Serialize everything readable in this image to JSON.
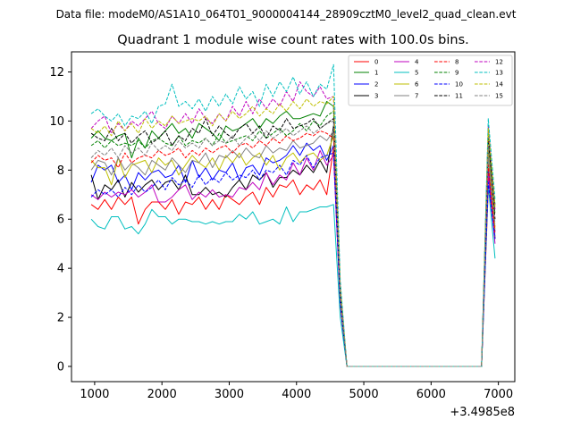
{
  "suptitle": "Data file: modeM0/AS1A10_064T01_9000004144_28909cztM0_level2_quad_clean.evt",
  "chart_data": {
    "type": "line",
    "title": "Quadrant 1 module wise count rates with 100.0s bins.",
    "xlabel": "",
    "ylabel": "",
    "x_offset_label": "+3.4985e8",
    "xlim": [
      656,
      7244
    ],
    "ylim": [
      -0.62,
      12.82
    ],
    "xticks": [
      1000,
      2000,
      3000,
      4000,
      5000,
      6000,
      7000
    ],
    "xtick_labels": [
      "1000",
      "2000",
      "3000",
      "4000",
      "5000",
      "6000",
      "7000"
    ],
    "yticks": [
      0,
      2,
      4,
      6,
      8,
      10,
      12
    ],
    "ytick_labels": [
      "0",
      "2",
      "4",
      "6",
      "8",
      "10",
      "12"
    ],
    "grid": false,
    "legend_position": "top-right",
    "x": [
      950,
      1050,
      1150,
      1250,
      1350,
      1450,
      1550,
      1650,
      1750,
      1850,
      1950,
      2050,
      2150,
      2250,
      2350,
      2450,
      2550,
      2650,
      2750,
      2850,
      2950,
      3050,
      3150,
      3250,
      3350,
      3450,
      3550,
      3650,
      3750,
      3850,
      3950,
      4050,
      4150,
      4250,
      4350,
      4450,
      4550,
      4650,
      4750,
      4850,
      4950,
      5050,
      5150,
      5250,
      5350,
      5450,
      5550,
      5650,
      5750,
      5850,
      5950,
      6050,
      6150,
      6250,
      6350,
      6450,
      6550,
      6650,
      6750,
      6850,
      6950
    ],
    "series": [
      {
        "name": "0",
        "color": "#ff0000",
        "dash": "solid",
        "values": [
          6.6,
          6.4,
          6.8,
          6.4,
          6.9,
          6.6,
          6.9,
          5.8,
          6.4,
          6.7,
          6.7,
          6.4,
          6.8,
          6.2,
          6.7,
          6.6,
          6.9,
          6.4,
          6.8,
          6.4,
          7.0,
          6.8,
          6.6,
          6.9,
          7.1,
          6.6,
          7.3,
          6.9,
          7.4,
          7.3,
          7.6,
          7.0,
          7.4,
          7.2,
          7.6,
          7.0,
          8.9,
          2.5,
          0,
          0,
          0,
          0,
          0,
          0,
          0,
          0,
          0,
          0,
          0,
          0,
          0,
          0,
          0,
          0,
          0,
          0,
          0,
          0,
          0,
          7.2,
          5.7
        ]
      },
      {
        "name": "1",
        "color": "#008000",
        "dash": "solid",
        "values": [
          9.3,
          9.6,
          9.3,
          9.2,
          9.4,
          9.5,
          8.5,
          9.3,
          8.9,
          9.6,
          9.3,
          9.6,
          9.9,
          9.5,
          9.7,
          9.3,
          9.9,
          9.7,
          9.5,
          9.2,
          9.8,
          9.6,
          9.7,
          9.9,
          10.1,
          9.7,
          10.1,
          9.9,
          10.2,
          10.4,
          10.1,
          10.1,
          10.2,
          10.3,
          10.2,
          10.8,
          10.6,
          3.0,
          0,
          0,
          0,
          0,
          0,
          0,
          0,
          0,
          0,
          0,
          0,
          0,
          0,
          0,
          0,
          0,
          0,
          0,
          0,
          0,
          0,
          9.0,
          6.6
        ]
      },
      {
        "name": "2",
        "color": "#0000ff",
        "dash": "solid",
        "values": [
          7.5,
          8.2,
          8.0,
          8.2,
          7.5,
          7.8,
          7.2,
          7.9,
          7.6,
          7.9,
          8.0,
          7.7,
          7.8,
          8.2,
          7.5,
          8.4,
          7.7,
          8.1,
          7.6,
          8.0,
          7.9,
          8.3,
          7.6,
          8.1,
          8.2,
          7.8,
          8.5,
          8.3,
          8.4,
          8.6,
          9.0,
          8.6,
          9.1,
          8.8,
          9.0,
          8.4,
          9.0,
          2.6,
          0,
          0,
          0,
          0,
          0,
          0,
          0,
          0,
          0,
          0,
          0,
          0,
          0,
          0,
          0,
          0,
          0,
          0,
          0,
          0,
          0,
          8.0,
          5.5
        ]
      },
      {
        "name": "3",
        "color": "#000000",
        "dash": "solid",
        "values": [
          7.8,
          6.8,
          7.4,
          7.2,
          7.6,
          6.9,
          7.5,
          7.1,
          7.4,
          7.6,
          7.2,
          7.5,
          7.6,
          7.2,
          7.8,
          7.0,
          7.0,
          7.3,
          7.0,
          7.1,
          6.9,
          7.3,
          7.6,
          7.2,
          7.8,
          7.6,
          7.9,
          7.3,
          7.7,
          7.7,
          8.0,
          7.8,
          8.2,
          7.9,
          8.4,
          7.9,
          9.8,
          2.7,
          0,
          0,
          0,
          0,
          0,
          0,
          0,
          0,
          0,
          0,
          0,
          0,
          0,
          0,
          0,
          0,
          0,
          0,
          0,
          0,
          0,
          8.6,
          5.2
        ]
      },
      {
        "name": "4",
        "color": "#bf00bf",
        "dash": "solid",
        "values": [
          7.0,
          6.8,
          7.1,
          6.9,
          7.1,
          7.0,
          7.2,
          6.9,
          7.1,
          7.4,
          6.7,
          6.7,
          6.9,
          7.2,
          7.4,
          6.8,
          7.1,
          6.9,
          7.2,
          6.9,
          7.0,
          6.9,
          7.3,
          7.2,
          7.5,
          7.2,
          7.9,
          7.4,
          7.8,
          7.6,
          8.3,
          7.8,
          8.5,
          8.0,
          8.8,
          8.2,
          8.6,
          2.6,
          0,
          0,
          0,
          0,
          0,
          0,
          0,
          0,
          0,
          0,
          0,
          0,
          0,
          0,
          0,
          0,
          0,
          0,
          0,
          0,
          0,
          7.8,
          5.0
        ]
      },
      {
        "name": "5",
        "color": "#00bfbf",
        "dash": "solid",
        "values": [
          6.0,
          5.7,
          5.6,
          6.1,
          6.1,
          5.6,
          5.7,
          5.4,
          5.8,
          6.4,
          6.1,
          6.1,
          5.8,
          6.0,
          6.0,
          5.9,
          5.9,
          5.8,
          5.9,
          5.8,
          5.9,
          5.9,
          6.2,
          6.0,
          6.3,
          5.8,
          5.9,
          6.0,
          5.8,
          6.5,
          5.9,
          6.3,
          6.3,
          6.4,
          6.5,
          6.5,
          6.6,
          2.0,
          0,
          0,
          0,
          0,
          0,
          0,
          0,
          0,
          0,
          0,
          0,
          0,
          0,
          0,
          0,
          0,
          0,
          0,
          0,
          0,
          0,
          7.4,
          4.4
        ]
      },
      {
        "name": "6",
        "color": "#bfbf00",
        "dash": "solid",
        "values": [
          8.4,
          8.1,
          8.1,
          7.4,
          8.5,
          7.7,
          8.2,
          8.3,
          8.4,
          7.9,
          8.5,
          8.2,
          8.4,
          7.8,
          8.2,
          8.6,
          8.3,
          8.1,
          8.5,
          8.0,
          8.6,
          8.3,
          8.7,
          8.2,
          8.5,
          8.7,
          8.2,
          8.6,
          8.0,
          8.5,
          8.7,
          8.3,
          8.6,
          8.7,
          8.4,
          8.6,
          9.4,
          2.7,
          0,
          0,
          0,
          0,
          0,
          0,
          0,
          0,
          0,
          0,
          0,
          0,
          0,
          0,
          0,
          0,
          0,
          0,
          0,
          0,
          0,
          8.8,
          5.6
        ]
      },
      {
        "name": "7",
        "color": "#808080",
        "dash": "solid",
        "values": [
          8.0,
          8.4,
          8.3,
          7.8,
          8.5,
          8.0,
          8.3,
          8.1,
          7.8,
          8.4,
          8.2,
          8.0,
          8.5,
          8.2,
          7.9,
          8.4,
          8.3,
          8.7,
          8.1,
          8.6,
          8.5,
          8.8,
          8.5,
          8.9,
          8.6,
          8.5,
          9.0,
          8.7,
          8.9,
          8.8,
          9.2,
          8.9,
          9.0,
          9.1,
          9.4,
          9.2,
          9.6,
          2.8,
          0,
          0,
          0,
          0,
          0,
          0,
          0,
          0,
          0,
          0,
          0,
          0,
          0,
          0,
          0,
          0,
          0,
          0,
          0,
          0,
          0,
          8.5,
          5.3
        ]
      },
      {
        "name": "8",
        "color": "#ff0000",
        "dash": "dashed",
        "values": [
          8.3,
          8.6,
          8.4,
          8.5,
          8.1,
          8.7,
          8.3,
          8.5,
          8.6,
          8.5,
          8.8,
          8.6,
          8.7,
          8.9,
          8.5,
          8.8,
          8.6,
          8.9,
          8.7,
          8.9,
          9.0,
          8.7,
          9.0,
          9.1,
          8.9,
          9.2,
          9.0,
          9.3,
          9.1,
          9.4,
          9.2,
          9.3,
          9.5,
          9.4,
          9.6,
          9.5,
          9.3,
          2.8,
          0,
          0,
          0,
          0,
          0,
          0,
          0,
          0,
          0,
          0,
          0,
          0,
          0,
          0,
          0,
          0,
          0,
          0,
          0,
          0,
          0,
          8.2,
          5.4
        ]
      },
      {
        "name": "9",
        "color": "#008000",
        "dash": "dashed",
        "values": [
          9.0,
          9.2,
          8.9,
          9.2,
          9.0,
          9.1,
          9.0,
          9.2,
          8.9,
          9.2,
          9.3,
          9.1,
          9.0,
          9.4,
          9.0,
          9.2,
          9.1,
          9.3,
          9.0,
          9.5,
          9.1,
          9.2,
          9.3,
          9.4,
          9.2,
          9.6,
          9.3,
          9.5,
          9.7,
          9.4,
          9.6,
          9.9,
          9.6,
          10.0,
          9.8,
          10.2,
          10.4,
          3.0,
          0,
          0,
          0,
          0,
          0,
          0,
          0,
          0,
          0,
          0,
          0,
          0,
          0,
          0,
          0,
          0,
          0,
          0,
          0,
          0,
          0,
          9.6,
          6.2
        ]
      },
      {
        "name": "10",
        "color": "#0000ff",
        "dash": "dashed",
        "values": [
          6.9,
          7.2,
          7.0,
          7.2,
          6.9,
          7.3,
          7.0,
          7.4,
          7.1,
          7.3,
          7.6,
          7.2,
          7.7,
          7.4,
          7.6,
          7.3,
          7.8,
          7.4,
          7.7,
          7.5,
          7.9,
          7.6,
          7.8,
          7.7,
          8.0,
          7.6,
          8.0,
          7.9,
          8.2,
          7.8,
          8.4,
          8.2,
          8.6,
          8.1,
          8.5,
          8.6,
          8.7,
          2.6,
          0,
          0,
          0,
          0,
          0,
          0,
          0,
          0,
          0,
          0,
          0,
          0,
          0,
          0,
          0,
          0,
          0,
          0,
          0,
          0,
          0,
          7.5,
          5.2
        ]
      },
      {
        "name": "11",
        "color": "#000000",
        "dash": "dashed",
        "values": [
          9.5,
          9.3,
          9.2,
          9.7,
          9.2,
          9.5,
          9.1,
          9.4,
          9.6,
          9.1,
          9.3,
          9.6,
          9.0,
          9.4,
          9.2,
          9.7,
          9.5,
          10.1,
          9.4,
          9.8,
          9.5,
          9.3,
          9.7,
          9.9,
          9.5,
          9.8,
          9.3,
          9.8,
          9.6,
          10.1,
          9.7,
          9.8,
          9.9,
          10.1,
          9.7,
          9.9,
          10.1,
          3.0,
          0,
          0,
          0,
          0,
          0,
          0,
          0,
          0,
          0,
          0,
          0,
          0,
          0,
          0,
          0,
          0,
          0,
          0,
          0,
          0,
          0,
          9.3,
          6.0
        ]
      },
      {
        "name": "12",
        "color": "#bf00bf",
        "dash": "dashed",
        "values": [
          9.7,
          10.0,
          10.2,
          9.5,
          9.9,
          9.6,
          10.0,
          9.8,
          10.1,
          10.4,
          9.9,
          9.7,
          10.2,
          9.9,
          10.3,
          9.9,
          10.5,
          10.1,
          9.9,
          10.3,
          10.0,
          10.6,
          10.2,
          10.8,
          10.3,
          10.9,
          10.5,
          10.9,
          10.6,
          11.2,
          10.8,
          11.6,
          11.2,
          11.0,
          11.4,
          10.9,
          11.0,
          3.3,
          0,
          0,
          0,
          0,
          0,
          0,
          0,
          0,
          0,
          0,
          0,
          0,
          0,
          0,
          0,
          0,
          0,
          0,
          0,
          0,
          0,
          9.8,
          6.4
        ]
      },
      {
        "name": "13",
        "color": "#00bfbf",
        "dash": "dashed",
        "values": [
          10.3,
          10.5,
          10.2,
          10.0,
          10.3,
          9.8,
          10.2,
          10.1,
          10.4,
          9.9,
          10.6,
          10.7,
          11.5,
          10.6,
          10.8,
          10.5,
          10.9,
          10.4,
          11.0,
          10.6,
          11.1,
          10.7,
          11.4,
          10.9,
          11.2,
          10.6,
          11.5,
          11.0,
          11.6,
          11.2,
          11.8,
          11.1,
          11.6,
          11.0,
          11.5,
          11.3,
          12.3,
          3.5,
          0,
          0,
          0,
          0,
          0,
          0,
          0,
          0,
          0,
          0,
          0,
          0,
          0,
          0,
          0,
          0,
          0,
          0,
          0,
          0,
          0,
          10.1,
          6.8
        ]
      },
      {
        "name": "14",
        "color": "#bfbf00",
        "dash": "dashed",
        "values": [
          9.7,
          9.5,
          9.8,
          9.4,
          10.0,
          9.6,
          9.9,
          9.5,
          10.1,
          9.7,
          10.0,
          9.8,
          10.2,
          9.9,
          10.0,
          10.1,
          10.0,
          10.2,
          9.8,
          10.3,
          10.0,
          10.4,
          10.1,
          10.3,
          10.6,
          10.2,
          10.5,
          10.3,
          10.7,
          10.4,
          10.8,
          10.5,
          10.9,
          10.6,
          10.8,
          10.7,
          11.0,
          3.2,
          0,
          0,
          0,
          0,
          0,
          0,
          0,
          0,
          0,
          0,
          0,
          0,
          0,
          0,
          0,
          0,
          0,
          0,
          0,
          0,
          0,
          9.7,
          6.5
        ]
      },
      {
        "name": "15",
        "color": "#808080",
        "dash": "dashed",
        "values": [
          8.5,
          8.8,
          8.6,
          8.9,
          8.5,
          9.0,
          8.7,
          8.9,
          8.6,
          9.1,
          8.8,
          9.0,
          8.8,
          9.2,
          8.9,
          9.1,
          8.9,
          9.3,
          9.0,
          9.2,
          9.1,
          9.4,
          9.0,
          9.3,
          9.5,
          9.2,
          9.6,
          9.3,
          9.5,
          9.7,
          9.4,
          9.6,
          9.8,
          9.5,
          9.7,
          9.9,
          10.0,
          2.9,
          0,
          0,
          0,
          0,
          0,
          0,
          0,
          0,
          0,
          0,
          0,
          0,
          0,
          0,
          0,
          0,
          0,
          0,
          0,
          0,
          0,
          9.0,
          5.8
        ]
      }
    ]
  }
}
